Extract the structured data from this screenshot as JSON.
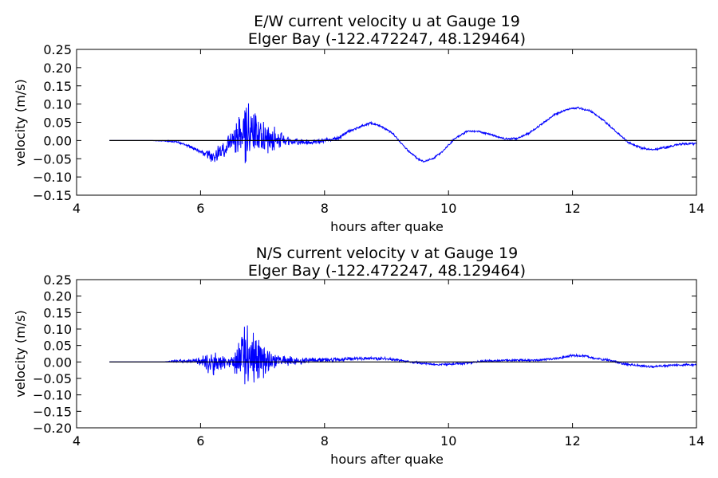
{
  "chart_data": [
    {
      "type": "line",
      "title": "E/W current velocity u at Gauge 19",
      "subtitle": "Elger Bay  (-122.472247, 48.129464)",
      "xlabel": "hours after quake",
      "ylabel": "velocity (m/s)",
      "xlim": [
        4,
        14
      ],
      "ylim": [
        -0.15,
        0.25
      ],
      "xticks": [
        "4",
        "6",
        "8",
        "10",
        "12",
        "14"
      ],
      "yticks": [
        "0.25",
        "0.20",
        "0.15",
        "0.10",
        "0.05",
        "0.00",
        "−0.05",
        "−0.10",
        "−0.15"
      ],
      "grid": false,
      "line_color": "#0000ff",
      "zero_line_color": "#000000",
      "zero_line_range": [
        4.53,
        14
      ],
      "series": [
        {
          "x": [
            4.53,
            5.2,
            5.6,
            5.8,
            6.0,
            6.2,
            6.35,
            6.5,
            6.65,
            6.75,
            6.85,
            6.95,
            7.05,
            7.2,
            7.4,
            7.6,
            7.8,
            8.0,
            8.2,
            8.4,
            8.6,
            8.75,
            8.9,
            9.1,
            9.3,
            9.5,
            9.6,
            9.75,
            9.9,
            10.1,
            10.3,
            10.5,
            10.7,
            10.9,
            11.1,
            11.3,
            11.5,
            11.7,
            11.9,
            12.1,
            12.3,
            12.5,
            12.7,
            12.9,
            13.1,
            13.3,
            13.5,
            13.7,
            14.0
          ],
          "y": [
            0.0,
            0.0,
            -0.003,
            -0.015,
            -0.03,
            -0.045,
            -0.03,
            0.0,
            0.02,
            0.03,
            0.02,
            0.01,
            0.005,
            0.005,
            0.0,
            -0.005,
            -0.005,
            0.0,
            0.005,
            0.025,
            0.04,
            0.048,
            0.04,
            0.02,
            -0.02,
            -0.05,
            -0.058,
            -0.05,
            -0.03,
            0.005,
            0.025,
            0.025,
            0.015,
            0.005,
            0.005,
            0.02,
            0.045,
            0.07,
            0.085,
            0.09,
            0.08,
            0.055,
            0.025,
            -0.005,
            -0.02,
            -0.025,
            -0.02,
            -0.01,
            -0.008
          ],
          "noise": [
            0.0,
            0.0,
            0.003,
            0.005,
            0.008,
            0.022,
            0.025,
            0.035,
            0.08,
            0.11,
            0.085,
            0.065,
            0.055,
            0.035,
            0.015,
            0.01,
            0.008,
            0.007,
            0.006,
            0.005,
            0.004,
            0.004,
            0.004,
            0.003,
            0.003,
            0.003,
            0.003,
            0.003,
            0.003,
            0.003,
            0.003,
            0.003,
            0.003,
            0.003,
            0.003,
            0.003,
            0.003,
            0.003,
            0.003,
            0.003,
            0.003,
            0.003,
            0.003,
            0.004,
            0.004,
            0.004,
            0.004,
            0.004,
            0.004
          ]
        }
      ]
    },
    {
      "type": "line",
      "title": "N/S current velocity v at Gauge 19",
      "subtitle": "Elger Bay  (-122.472247, 48.129464)",
      "xlabel": "hours after quake",
      "ylabel": "velocity (m/s)",
      "xlim": [
        4,
        14
      ],
      "ylim": [
        -0.2,
        0.25
      ],
      "xticks": [
        "4",
        "6",
        "8",
        "10",
        "12",
        "14"
      ],
      "yticks": [
        "0.25",
        "0.20",
        "0.15",
        "0.10",
        "0.05",
        "0.00",
        "−0.05",
        "−0.10",
        "−0.15",
        "−0.20"
      ],
      "grid": false,
      "line_color": "#0000ff",
      "zero_line_color": "#000000",
      "zero_line_range": [
        4.53,
        14
      ],
      "series": [
        {
          "x": [
            4.53,
            5.4,
            5.6,
            5.9,
            6.1,
            6.2,
            6.3,
            6.5,
            6.75,
            6.85,
            6.95,
            7.1,
            7.3,
            7.5,
            7.8,
            8.2,
            8.6,
            9.0,
            9.4,
            9.8,
            10.2,
            10.6,
            11.0,
            11.4,
            11.8,
            12.0,
            12.2,
            12.4,
            12.6,
            12.8,
            13.0,
            13.3,
            13.6,
            14.0
          ],
          "y": [
            0.0,
            0.0,
            0.003,
            0.003,
            0.0,
            -0.01,
            0.0,
            0.0,
            0.02,
            0.015,
            0.005,
            0.0,
            0.005,
            0.005,
            0.005,
            0.008,
            0.01,
            0.01,
            0.0,
            -0.008,
            -0.005,
            0.003,
            0.005,
            0.005,
            0.012,
            0.02,
            0.018,
            0.01,
            0.005,
            -0.005,
            -0.01,
            -0.015,
            -0.01,
            -0.008
          ],
          "noise": [
            0.0,
            0.0,
            0.005,
            0.006,
            0.03,
            0.05,
            0.03,
            0.02,
            0.13,
            0.1,
            0.075,
            0.045,
            0.02,
            0.015,
            0.01,
            0.008,
            0.006,
            0.005,
            0.004,
            0.004,
            0.004,
            0.004,
            0.004,
            0.004,
            0.004,
            0.004,
            0.004,
            0.004,
            0.004,
            0.004,
            0.004,
            0.004,
            0.004,
            0.004
          ]
        }
      ]
    }
  ]
}
